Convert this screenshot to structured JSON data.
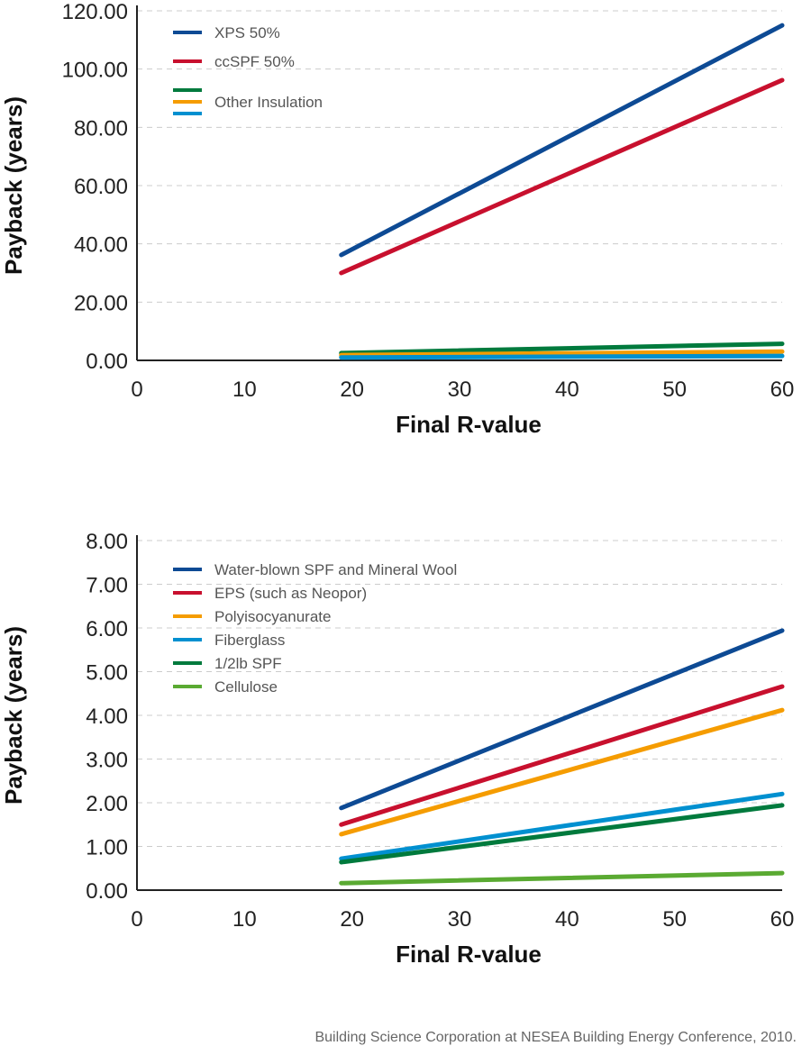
{
  "chart_data": [
    {
      "type": "line",
      "xlabel": "Final R-value",
      "ylabel": "Payback (years)",
      "xlim": [
        0,
        60
      ],
      "ylim": [
        0,
        120
      ],
      "xticks": [
        "0",
        "10",
        "20",
        "30",
        "40",
        "50",
        "60"
      ],
      "yticks": [
        "0.00",
        "20.00",
        "40.00",
        "60.00",
        "80.00",
        "100.00",
        "120.00"
      ],
      "grid": "horizontal dashed",
      "legend_position": "top-left",
      "legend": [
        "XPS 50%",
        "ccSPF 50%",
        "Other Insulation"
      ],
      "series": [
        {
          "name": "XPS 50%",
          "color": "#0d4a94",
          "x": [
            19,
            60
          ],
          "y": [
            36.2,
            115
          ]
        },
        {
          "name": "ccSPF 50%",
          "color": "#c8102e",
          "x": [
            19,
            60
          ],
          "y": [
            30,
            96.2
          ]
        },
        {
          "color": "#007a3d",
          "x": [
            19,
            60
          ],
          "y": [
            2.5,
            5.7
          ]
        },
        {
          "color": "#f59c00",
          "x": [
            19,
            60
          ],
          "y": [
            1.8,
            3.0
          ]
        },
        {
          "color": "#0090d0",
          "x": [
            19,
            60
          ],
          "y": [
            1.0,
            1.5
          ]
        }
      ]
    },
    {
      "type": "line",
      "xlabel": "Final R-value",
      "ylabel": "Payback (years)",
      "xlim": [
        0,
        60
      ],
      "ylim": [
        0,
        8
      ],
      "xticks": [
        "0",
        "10",
        "20",
        "30",
        "40",
        "50",
        "60"
      ],
      "yticks": [
        "0.00",
        "1.00",
        "2.00",
        "3.00",
        "4.00",
        "5.00",
        "6.00",
        "7.00",
        "8.00"
      ],
      "grid": "horizontal dashed",
      "legend_position": "top-left",
      "series": [
        {
          "name": "Water-blown SPF and Mineral Wool",
          "color": "#0d4a94",
          "x": [
            19,
            60
          ],
          "y": [
            1.88,
            5.94
          ]
        },
        {
          "name": "EPS (such as Neopor)",
          "color": "#c8102e",
          "x": [
            19,
            60
          ],
          "y": [
            1.5,
            4.66
          ]
        },
        {
          "name": "Polyisocyanurate",
          "color": "#f59c00",
          "x": [
            19,
            60
          ],
          "y": [
            1.28,
            4.12
          ]
        },
        {
          "name": "Fiberglass",
          "color": "#0090d0",
          "x": [
            19,
            60
          ],
          "y": [
            0.72,
            2.2
          ]
        },
        {
          "name": "1/2lb SPF",
          "color": "#007a3d",
          "x": [
            19,
            60
          ],
          "y": [
            0.64,
            1.94
          ]
        },
        {
          "name": "Cellulose",
          "color": "#5aaa32",
          "x": [
            19,
            60
          ],
          "y": [
            0.16,
            0.39
          ]
        }
      ]
    }
  ],
  "source": "Building Science Corporation at NESEA Building Energy Conference, 2010."
}
